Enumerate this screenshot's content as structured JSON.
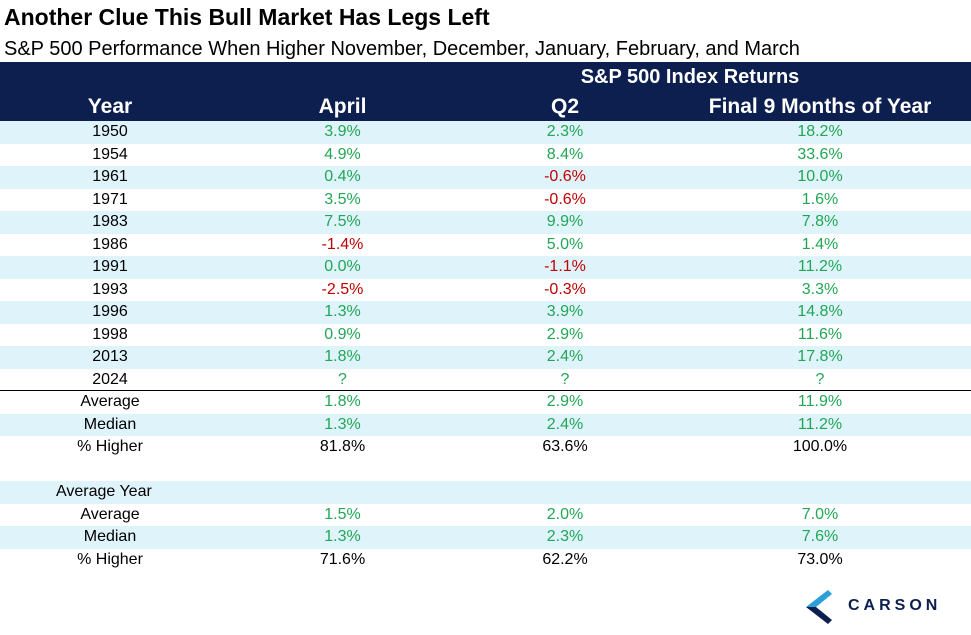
{
  "title": "Another Clue This Bull Market Has Legs Left",
  "subtitle": "S&P 500 Performance When Higher November, December, January, February, and March",
  "header": {
    "group": "S&P 500 Index Returns",
    "columns": [
      "Year",
      "April",
      "Q2",
      "Final 9 Months of Year"
    ]
  },
  "rows": [
    {
      "label": "1950",
      "april": "3.9%",
      "q2": "2.3%",
      "final": "18.2%",
      "shade": true,
      "colors": [
        "pos",
        "pos",
        "pos"
      ]
    },
    {
      "label": "1954",
      "april": "4.9%",
      "q2": "8.4%",
      "final": "33.6%",
      "shade": false,
      "colors": [
        "pos",
        "pos",
        "pos"
      ]
    },
    {
      "label": "1961",
      "april": "0.4%",
      "q2": "-0.6%",
      "final": "10.0%",
      "shade": true,
      "colors": [
        "pos",
        "neg",
        "pos"
      ]
    },
    {
      "label": "1971",
      "april": "3.5%",
      "q2": "-0.6%",
      "final": "1.6%",
      "shade": false,
      "colors": [
        "pos",
        "neg",
        "pos"
      ]
    },
    {
      "label": "1983",
      "april": "7.5%",
      "q2": "9.9%",
      "final": "7.8%",
      "shade": true,
      "colors": [
        "pos",
        "pos",
        "pos"
      ]
    },
    {
      "label": "1986",
      "april": "-1.4%",
      "q2": "5.0%",
      "final": "1.4%",
      "shade": false,
      "colors": [
        "neg",
        "pos",
        "pos"
      ]
    },
    {
      "label": "1991",
      "april": "0.0%",
      "q2": "-1.1%",
      "final": "11.2%",
      "shade": true,
      "colors": [
        "pos",
        "neg",
        "pos"
      ]
    },
    {
      "label": "1993",
      "april": "-2.5%",
      "q2": "-0.3%",
      "final": "3.3%",
      "shade": false,
      "colors": [
        "neg",
        "neg",
        "pos"
      ]
    },
    {
      "label": "1996",
      "april": "1.3%",
      "q2": "3.9%",
      "final": "14.8%",
      "shade": true,
      "colors": [
        "pos",
        "pos",
        "pos"
      ]
    },
    {
      "label": "1998",
      "april": "0.9%",
      "q2": "2.9%",
      "final": "11.6%",
      "shade": false,
      "colors": [
        "pos",
        "pos",
        "pos"
      ]
    },
    {
      "label": "2013",
      "april": "1.8%",
      "q2": "2.4%",
      "final": "17.8%",
      "shade": true,
      "colors": [
        "pos",
        "pos",
        "pos"
      ]
    },
    {
      "label": "2024",
      "april": "?",
      "q2": "?",
      "final": "?",
      "shade": false,
      "divider": true,
      "colors": [
        "pos",
        "pos",
        "pos"
      ]
    },
    {
      "label": "Average",
      "april": "1.8%",
      "q2": "2.9%",
      "final": "11.9%",
      "shade": false,
      "colors": [
        "pos",
        "pos",
        "pos"
      ]
    },
    {
      "label": "Median",
      "april": "1.3%",
      "q2": "2.4%",
      "final": "11.2%",
      "shade": true,
      "colors": [
        "pos",
        "pos",
        "pos"
      ]
    },
    {
      "label": "% Higher",
      "april": "81.8%",
      "q2": "63.6%",
      "final": "100.0%",
      "shade": false,
      "colors": [
        "blk",
        "blk",
        "blk"
      ]
    },
    {
      "label": "",
      "april": "",
      "q2": "",
      "final": "",
      "shade": false,
      "colors": [
        "blk",
        "blk",
        "blk"
      ]
    },
    {
      "label": "Average Year",
      "april": "",
      "q2": "",
      "final": "",
      "shade": true,
      "leftAlign": true,
      "colors": [
        "blk",
        "blk",
        "blk"
      ]
    },
    {
      "label": "Average",
      "april": "1.5%",
      "q2": "2.0%",
      "final": "7.0%",
      "shade": false,
      "colors": [
        "pos",
        "pos",
        "pos"
      ]
    },
    {
      "label": "Median",
      "april": "1.3%",
      "q2": "2.3%",
      "final": "7.6%",
      "shade": true,
      "colors": [
        "pos",
        "pos",
        "pos"
      ]
    },
    {
      "label": "% Higher",
      "april": "71.6%",
      "q2": "62.2%",
      "final": "73.0%",
      "shade": false,
      "colors": [
        "blk",
        "blk",
        "blk"
      ]
    }
  ],
  "logo": {
    "text": "CARSON",
    "icon": "carson-chevron-icon",
    "color": "#0d1f4f",
    "accent": "#2a9fd8"
  },
  "colors": {
    "header_bg": "#0d1f4f",
    "shade": "#dff3fb",
    "positive": "#21a655",
    "negative": "#c00000"
  }
}
